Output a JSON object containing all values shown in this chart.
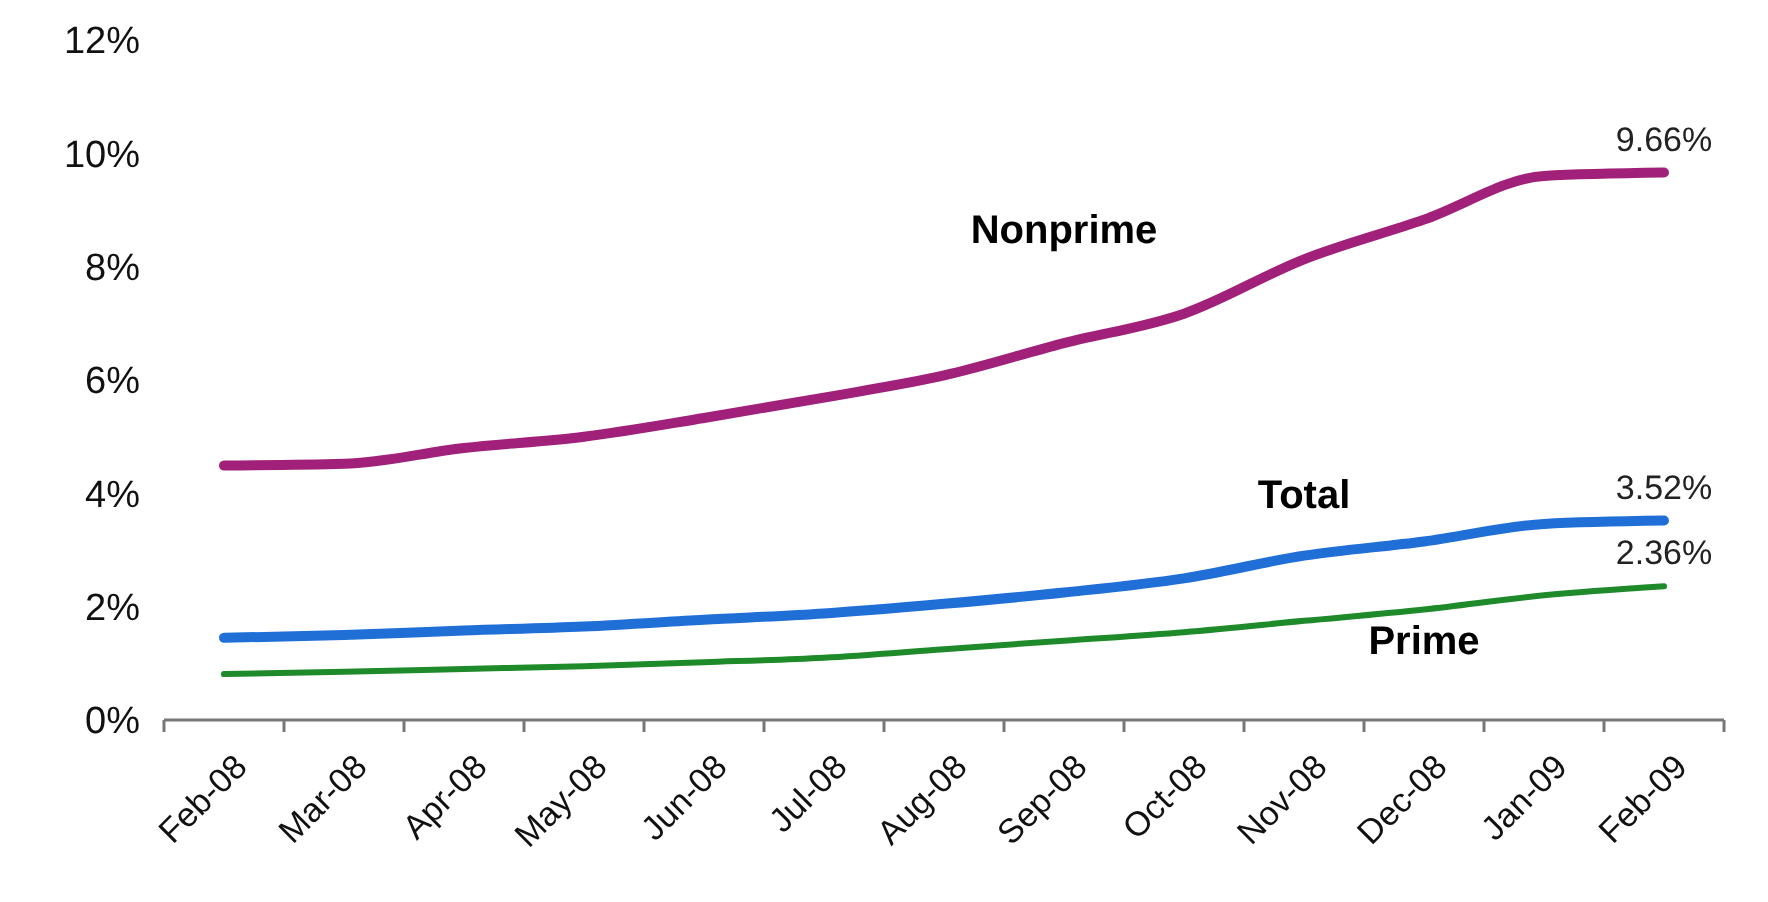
{
  "chart_data": {
    "type": "line",
    "categories": [
      "Feb-08",
      "Mar-08",
      "Apr-08",
      "May-08",
      "Jun-08",
      "Jul-08",
      "Aug-08",
      "Sep-08",
      "Oct-08",
      "Nov-08",
      "Dec-08",
      "Jan-09",
      "Feb-09"
    ],
    "series": [
      {
        "name": "Nonprime",
        "color": "#a0207a",
        "values": [
          4.49,
          4.52,
          4.8,
          5.0,
          5.33,
          5.69,
          6.08,
          6.65,
          7.17,
          8.13,
          8.83,
          9.6,
          9.66
        ],
        "value_labels": [
          null,
          null,
          null,
          null,
          null,
          null,
          null,
          null,
          null,
          null,
          null,
          null,
          "9.66%"
        ]
      },
      {
        "name": "Total",
        "color": "#1f6fd6",
        "values": [
          1.45,
          1.5,
          1.58,
          1.65,
          1.77,
          1.88,
          2.05,
          2.25,
          2.5,
          2.9,
          3.15,
          3.46,
          3.52
        ],
        "value_labels": [
          null,
          null,
          null,
          null,
          null,
          null,
          null,
          null,
          null,
          null,
          null,
          null,
          "3.52%"
        ]
      },
      {
        "name": "Prime",
        "color": "#1f8a2a",
        "values": [
          0.81,
          0.85,
          0.9,
          0.95,
          1.02,
          1.1,
          1.25,
          1.4,
          1.55,
          1.75,
          1.95,
          2.2,
          2.36
        ],
        "value_labels": [
          null,
          null,
          null,
          null,
          null,
          null,
          null,
          null,
          null,
          null,
          null,
          null,
          "2.36%"
        ]
      }
    ],
    "ylim": [
      0,
      12
    ],
    "yticks": [
      {
        "value": 0,
        "label": "0%"
      },
      {
        "value": 2,
        "label": "2%"
      },
      {
        "value": 4,
        "label": "4%"
      },
      {
        "value": 6,
        "label": "6%"
      },
      {
        "value": 8,
        "label": "8%"
      },
      {
        "value": 10,
        "label": "10%"
      },
      {
        "value": 12,
        "label": "12%"
      }
    ],
    "grid": false,
    "marker": "none",
    "line_style": "solid"
  }
}
